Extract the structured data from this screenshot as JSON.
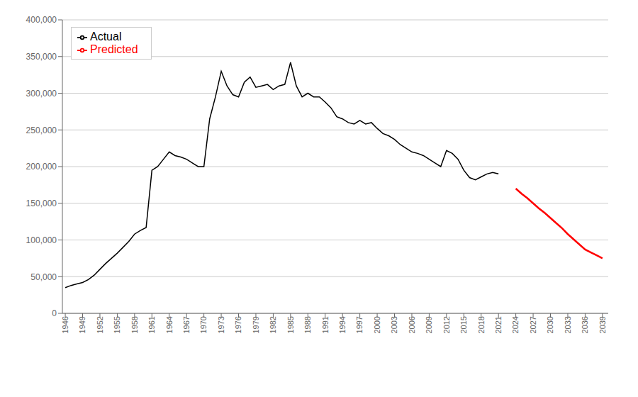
{
  "chart_data": {
    "type": "line",
    "series": [
      {
        "name": "Actual",
        "color": "#000000",
        "x": [
          1946,
          1947,
          1948,
          1949,
          1950,
          1951,
          1952,
          1953,
          1954,
          1955,
          1956,
          1957,
          1958,
          1959,
          1960,
          1961,
          1962,
          1963,
          1964,
          1965,
          1966,
          1967,
          1968,
          1969,
          1970,
          1971,
          1972,
          1973,
          1974,
          1975,
          1976,
          1977,
          1978,
          1979,
          1980,
          1981,
          1982,
          1983,
          1984,
          1985,
          1986,
          1987,
          1988,
          1989,
          1990,
          1991,
          1992,
          1993,
          1994,
          1995,
          1996,
          1997,
          1998,
          1999,
          2000,
          2001,
          2002,
          2003,
          2004,
          2005,
          2006,
          2007,
          2008,
          2009,
          2010,
          2011,
          2012,
          2013,
          2014,
          2015,
          2016,
          2017,
          2018,
          2019,
          2020,
          2021
        ],
        "values": [
          35000,
          38000,
          40000,
          42000,
          46000,
          52000,
          60000,
          68000,
          75000,
          82000,
          90000,
          98000,
          108000,
          113000,
          117000,
          195000,
          200000,
          210000,
          220000,
          215000,
          213000,
          210000,
          205000,
          200000,
          200000,
          265000,
          295000,
          330000,
          310000,
          298000,
          295000,
          315000,
          322000,
          308000,
          310000,
          312000,
          305000,
          310000,
          312000,
          342000,
          310000,
          295000,
          300000,
          295000,
          295000,
          288000,
          280000,
          268000,
          265000,
          260000,
          258000,
          263000,
          258000,
          260000,
          252000,
          245000,
          242000,
          237000,
          230000,
          225000,
          220000,
          218000,
          215000,
          210000,
          205000,
          200000,
          222000,
          218000,
          210000,
          195000,
          185000,
          182000,
          186000,
          190000,
          192000,
          190000
        ]
      },
      {
        "name": "Predicted",
        "color": "#ff0000",
        "x": [
          2024,
          2025,
          2026,
          2027,
          2028,
          2029,
          2030,
          2031,
          2032,
          2033,
          2034,
          2035,
          2036,
          2037,
          2038,
          2039
        ],
        "values": [
          170000,
          163000,
          157000,
          150000,
          143000,
          137000,
          130000,
          123000,
          116000,
          108000,
          101000,
          94000,
          87000,
          83000,
          79000,
          75000
        ]
      }
    ],
    "xlim": [
      1945.5,
      2040
    ],
    "xticks": [
      1946,
      1949,
      1952,
      1955,
      1958,
      1961,
      1964,
      1967,
      1970,
      1973,
      1976,
      1979,
      1982,
      1985,
      1988,
      1991,
      1994,
      1997,
      2000,
      2003,
      2006,
      2009,
      2012,
      2015,
      2018,
      2021,
      2024,
      2027,
      2030,
      2033,
      2036,
      2039
    ],
    "ylim": [
      0,
      400000
    ],
    "yticks": [
      0,
      {
        "value": 50000,
        "label": "50,000"
      },
      {
        "value": 100000,
        "label": "100,000"
      },
      {
        "value": 150000,
        "label": "150,000"
      },
      {
        "value": 200000,
        "label": "200,000"
      },
      {
        "value": 250000,
        "label": "250,000"
      },
      {
        "value": 300000,
        "label": "300,000"
      },
      {
        "value": 350000,
        "label": "350,000"
      },
      {
        "value": 400000,
        "label": "400,000"
      }
    ],
    "grid": true,
    "legend": "upper left"
  }
}
